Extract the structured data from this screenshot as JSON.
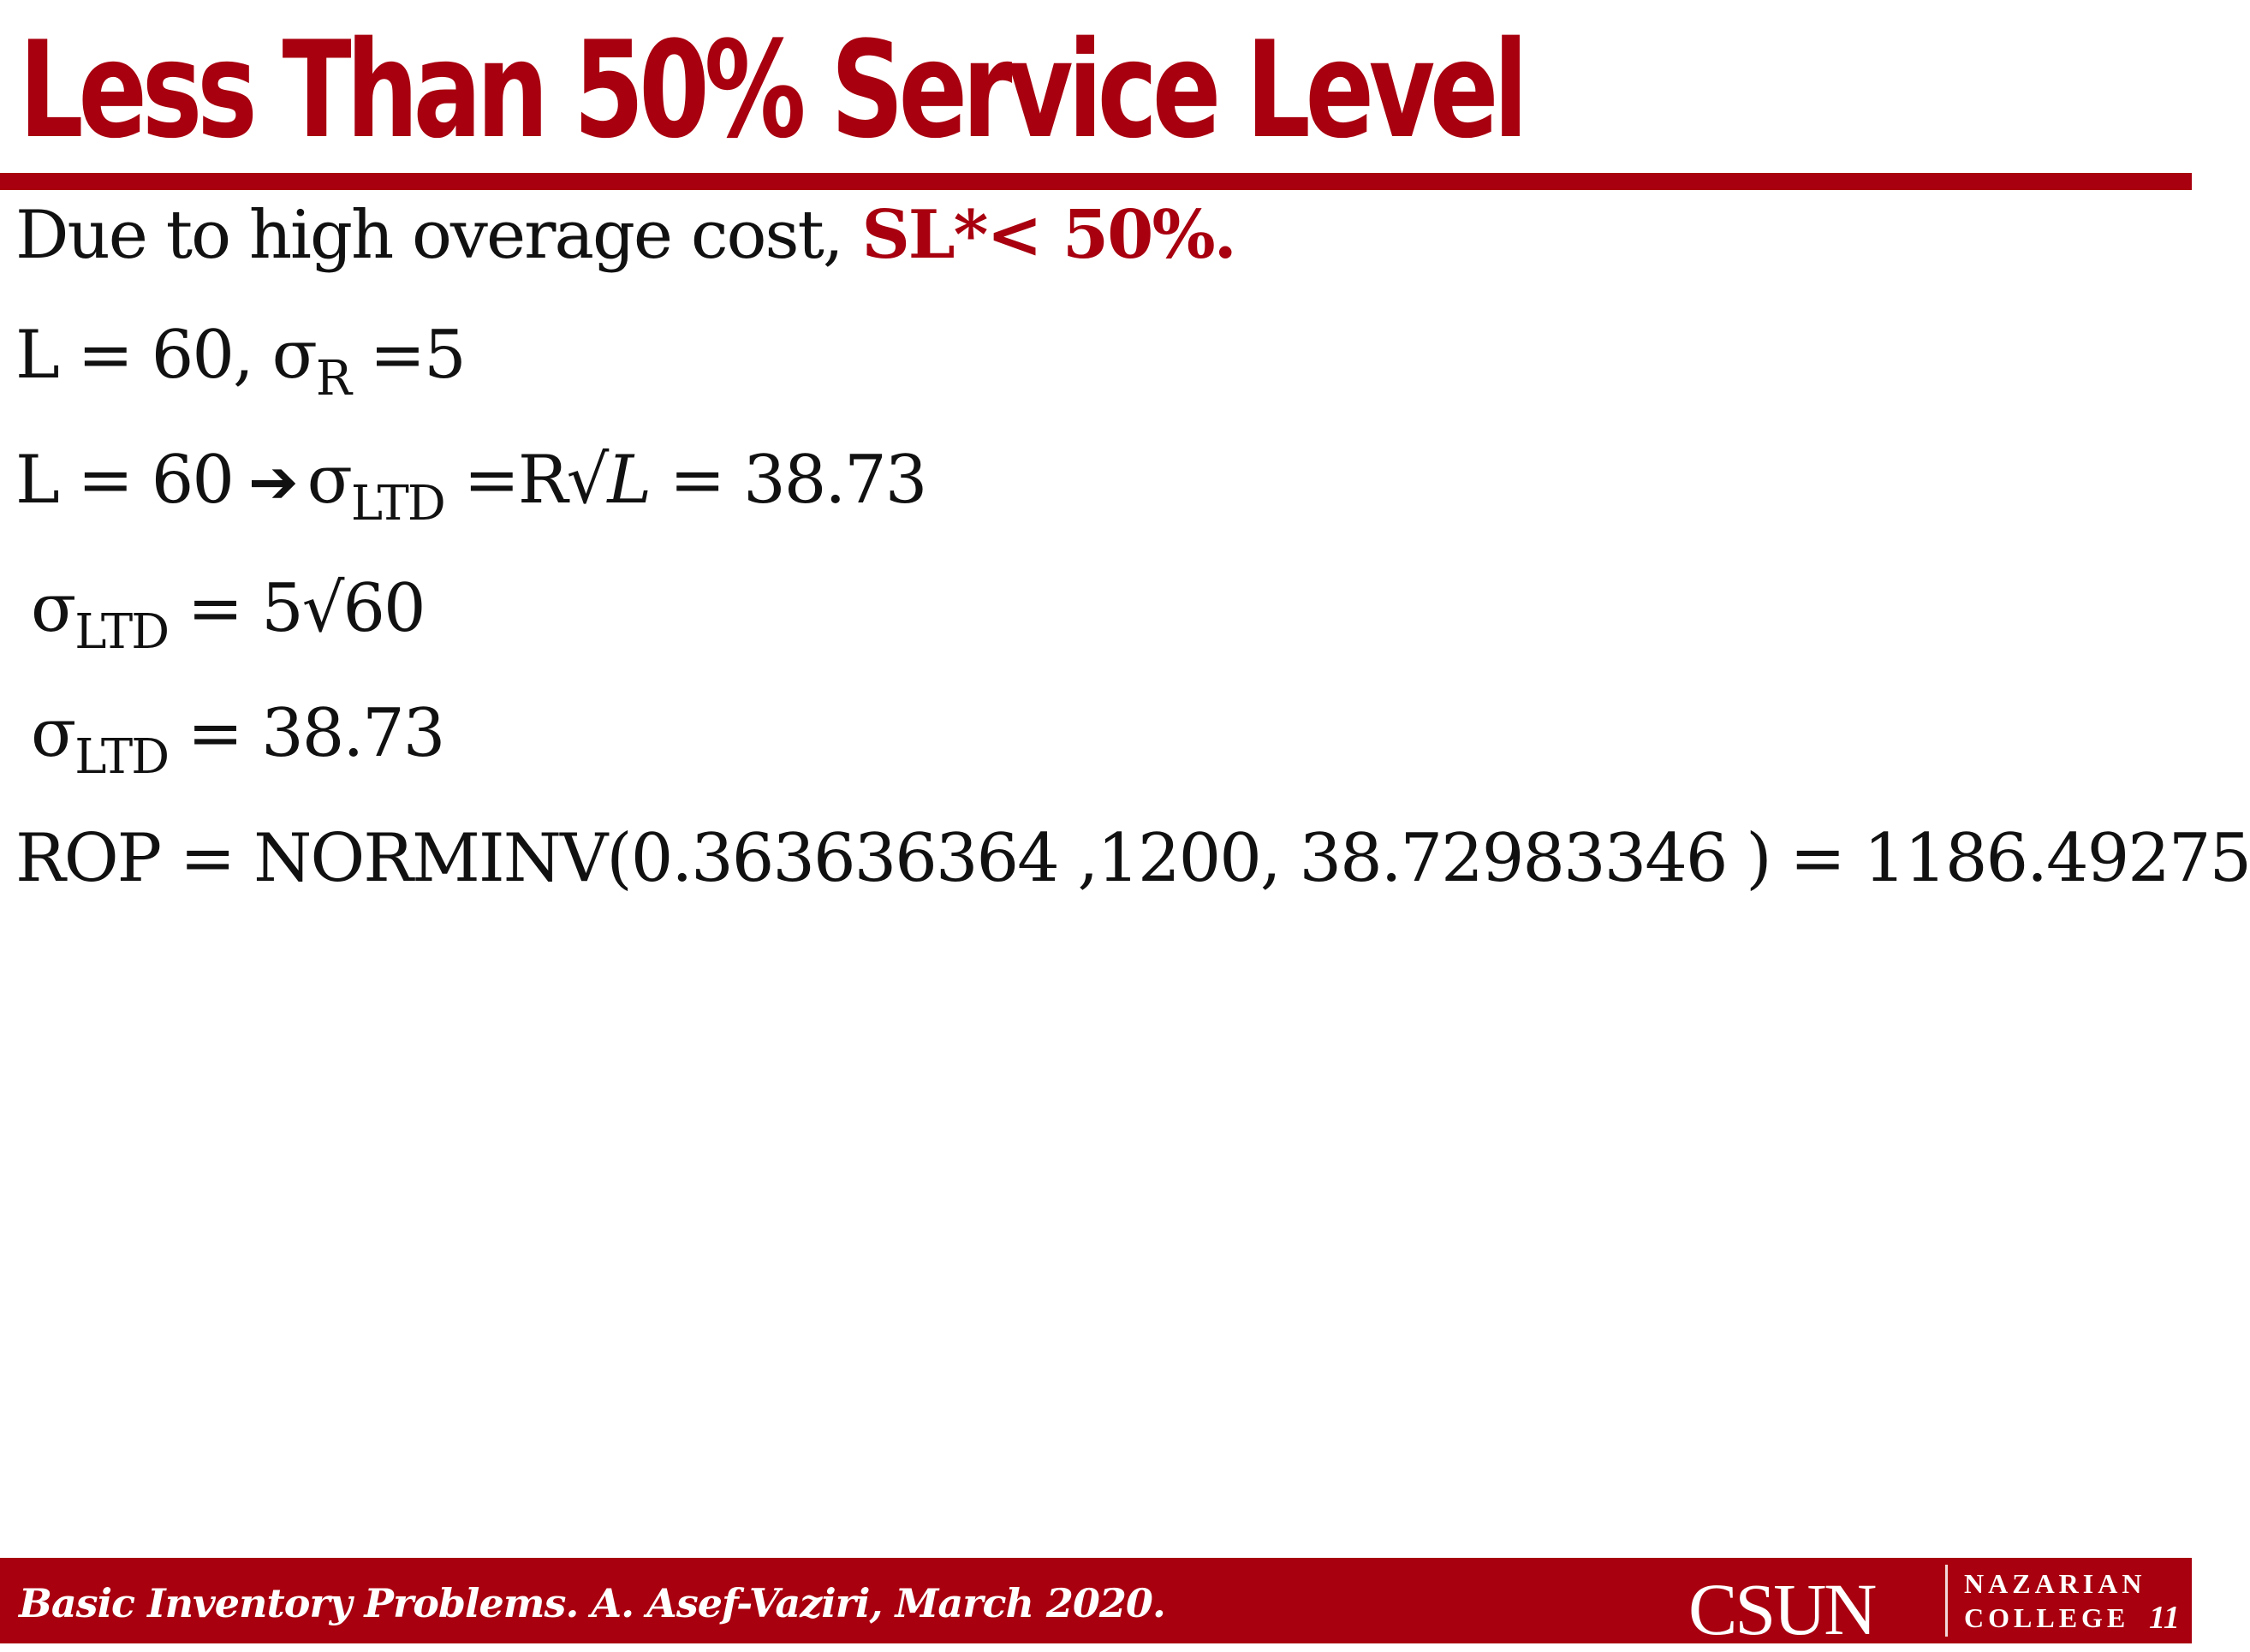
{
  "slide": {
    "title": "Less Than 50% Service Level",
    "lines": {
      "l1": {
        "text": "Due to high overage cost, ",
        "highlight": "SL*< 50%."
      },
      "l2": {
        "a": "L = 60, σ",
        "sub": "R",
        "b": " =5"
      },
      "l3": {
        "a": "L = 60",
        "arrow": "➔",
        "b": "σ",
        "sub": "LTD",
        "c": " =R√",
        "var": "L",
        "d": " = 38.73"
      },
      "l4": {
        "a": "σ",
        "sub": "LTD",
        "b": " = 5√60"
      },
      "l5": {
        "a": "σ",
        "sub": "LTD",
        "b": " = 38.73"
      },
      "l6": {
        "text": "ROP = NORMINV(0.363636364 ,1200, 38.72983346 ) = 1186.49275"
      }
    }
  },
  "footer": {
    "citation": "Basic Inventory Problems. A. Asef-Vaziri, March 2020.",
    "logo_name": "CSUN",
    "logo_line1": "NAZARIAN",
    "logo_line2": "COLLEGE",
    "page_number": "11"
  },
  "colors": {
    "brand_red": "#a8000f",
    "text": "#111111",
    "background": "#ffffff"
  }
}
